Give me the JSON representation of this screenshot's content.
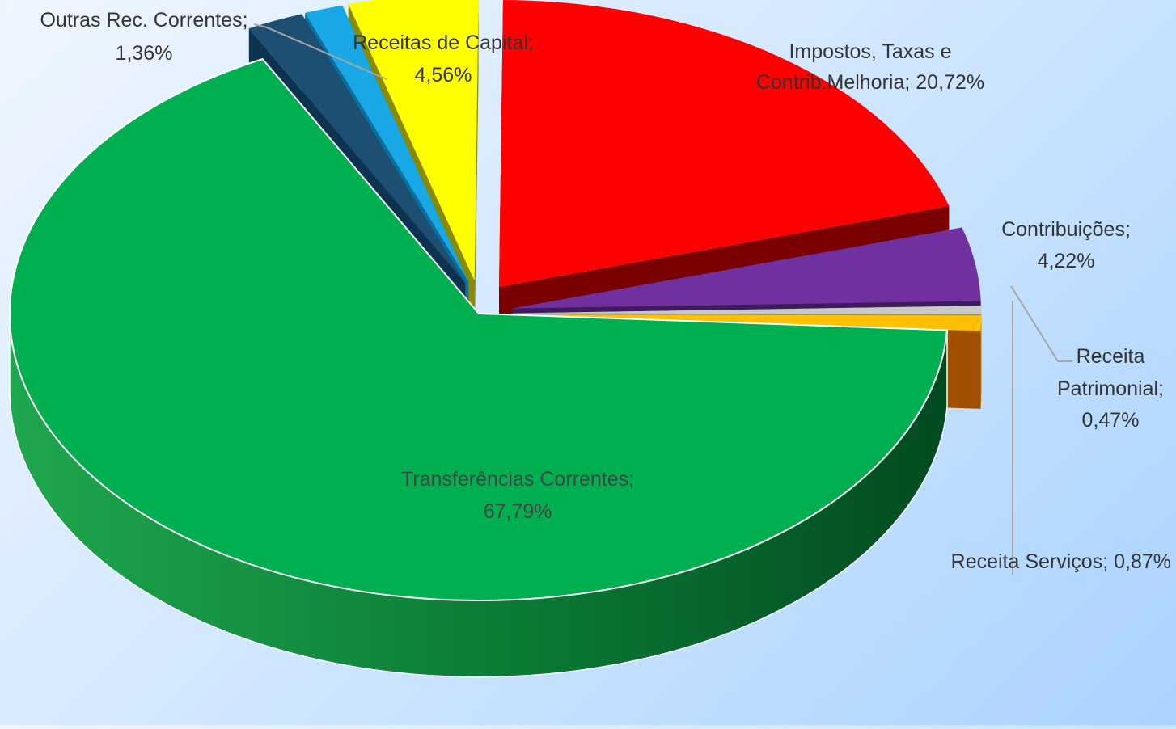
{
  "chart_data": {
    "type": "pie",
    "style": "3d-exploded",
    "title": "",
    "slices": [
      {
        "name": "Impostos, Taxas e Contrib.Melhoria",
        "value": 20.72,
        "label": "20,72%",
        "color": "#ff0000",
        "side_color": "#7a0000"
      },
      {
        "name": "Contribuições",
        "value": 4.22,
        "label": "4,22%",
        "color": "#7030a0",
        "side_color": "#3f1a5c"
      },
      {
        "name": "Receita Patrimonial",
        "value": 0.47,
        "label": "0,47%",
        "color": "#c9c9c9",
        "side_color": "#8a8a8a"
      },
      {
        "name": "Receita Serviços",
        "value": 0.87,
        "label": "0,87%",
        "color": "#ffc000",
        "side_color": "#b38600"
      },
      {
        "name": "",
        "value": 0.02,
        "label": "",
        "color": "#e07000",
        "side_color": "#a05000"
      },
      {
        "name": "",
        "value": 0.0,
        "label": "",
        "color": "#6b4a00",
        "side_color": "#6b4a00"
      },
      {
        "name": "Transferências Correntes",
        "value": 67.79,
        "label": "67,79%",
        "color": "#00b050",
        "side_color": "#006a2f"
      },
      {
        "name": "",
        "value": 2.0,
        "label": "",
        "color": "#1d4f73",
        "side_color": "#0d3350"
      },
      {
        "name": "Outras Rec. Correntes",
        "value": 1.36,
        "label": "1,36%",
        "color": "#18a8e6",
        "side_color": "#0a6f9c"
      },
      {
        "name": "Receitas de Capital",
        "value": 4.56,
        "label": "4,56%",
        "color": "#ffff00",
        "side_color": "#8a8a00"
      }
    ],
    "labels": {
      "impostos_line1": "Impostos, Taxas e",
      "impostos_line2": "Contrib.Melhoria; 20,72%",
      "contribuicoes_line1": "Contribuições;",
      "contribuicoes_line2": "4,22%",
      "patrimonial_line1": "Receita",
      "patrimonial_line2": "Patrimonial;",
      "patrimonial_line3": "0,47%",
      "servicos": "Receita Serviços; 0,87%",
      "transferencias_line1": "Transferências Correntes;",
      "transferencias_line2": "67,79%",
      "outras_line1": "Outras Rec. Correntes;",
      "outras_line2": "1,36%",
      "capital_line1": "Receitas de Capital;",
      "capital_line2": "4,56%"
    },
    "legend": "none"
  }
}
